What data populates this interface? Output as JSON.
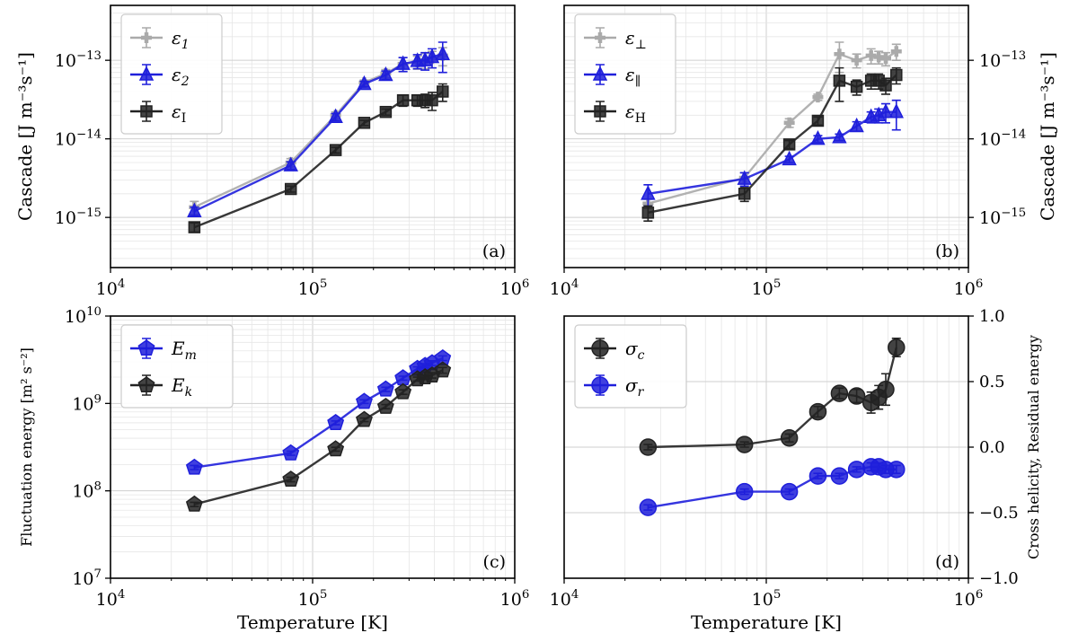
{
  "chart_data": [
    {
      "type": "line",
      "panel_label": "(a)",
      "xscale": "log",
      "yscale": "log",
      "xlim": [
        10000,
        1000000
      ],
      "ylim": [
        2.3e-16,
        5e-13
      ],
      "ylabel": "Cascade [J m⁻³s⁻¹]",
      "xlabel": "",
      "yaxis_side": "left",
      "legend_position": "top-left",
      "x_tick_labels": [
        "10",
        "10",
        "10"
      ],
      "x_tick_exponents": [
        "4",
        "5",
        "6"
      ],
      "y_tick_labels": [
        "10",
        "10",
        "10"
      ],
      "y_tick_exponents": [
        "−15",
        "−14",
        "−13"
      ],
      "x": [
        26000,
        78000,
        130000,
        180000,
        230000,
        280000,
        330000,
        360000,
        390000,
        440000
      ],
      "series": [
        {
          "name": "ε",
          "sub": "1",
          "color": "#aaaaaa",
          "marker": "plus",
          "values": [
            1.35e-15,
            5e-15,
            2e-14,
            5.2e-14,
            6.8e-14,
            9e-14,
            9.5e-14,
            1e-13,
            1.05e-13,
            1.15e-13
          ],
          "errors": [
            2.5e-16,
            6e-16,
            2e-15,
            4e-15,
            8e-15,
            1.8e-14,
            1.8e-14,
            2.2e-14,
            2.5e-14,
            3e-14
          ]
        },
        {
          "name": "ε",
          "sub": "2",
          "color": "#1f1fdb",
          "marker": "triangle",
          "values": [
            1.2e-15,
            4.6e-15,
            1.9e-14,
            5e-14,
            6.5e-14,
            9e-14,
            9.8e-14,
            1e-13,
            1.1e-13,
            1.2e-13
          ],
          "errors": [
            1.5e-16,
            5e-16,
            2e-15,
            4e-15,
            8e-15,
            1.8e-14,
            2e-14,
            2.5e-14,
            3e-14,
            5e-14
          ]
        },
        {
          "name": "ε",
          "sub": "I",
          "color": "#222222",
          "marker": "square",
          "values": [
            7.5e-16,
            2.3e-15,
            7.2e-15,
            1.6e-14,
            2.2e-14,
            3.1e-14,
            3.1e-14,
            3.1e-14,
            3.1e-14,
            4e-14
          ],
          "errors": [
            1e-16,
            2e-16,
            6e-16,
            1.2e-15,
            2e-15,
            5e-15,
            5e-15,
            6e-15,
            8e-15,
            1e-14
          ]
        }
      ]
    },
    {
      "type": "line",
      "panel_label": "(b)",
      "xscale": "log",
      "yscale": "log",
      "xlim": [
        10000,
        1000000
      ],
      "ylim": [
        2.3e-16,
        5e-13
      ],
      "ylabel": "Cascade [J m⁻³s⁻¹]",
      "xlabel": "",
      "yaxis_side": "right",
      "legend_position": "top-left",
      "x_tick_labels": [
        "10",
        "10",
        "10"
      ],
      "x_tick_exponents": [
        "4",
        "5",
        "6"
      ],
      "y_tick_labels": [
        "10",
        "10",
        "10"
      ],
      "y_tick_exponents": [
        "−15",
        "−14",
        "−13"
      ],
      "x": [
        26000,
        78000,
        130000,
        180000,
        230000,
        280000,
        330000,
        360000,
        390000,
        440000
      ],
      "series": [
        {
          "name": "ε",
          "sub": "⊥",
          "color": "#aaaaaa",
          "marker": "plus",
          "values": [
            1.5e-15,
            3.2e-15,
            1.6e-14,
            3.4e-14,
            1.2e-13,
            1e-13,
            1.15e-13,
            1.1e-13,
            1.05e-13,
            1.3e-13
          ],
          "errors": [
            2e-16,
            5e-16,
            2e-15,
            3e-15,
            5e-14,
            2e-14,
            2.5e-14,
            2e-14,
            2e-14,
            3e-14
          ]
        },
        {
          "name": "ε",
          "sub": "∥",
          "color": "#1f1fdb",
          "marker": "triangle",
          "values": [
            2e-15,
            3.1e-15,
            5.5e-15,
            1e-14,
            1.05e-14,
            1.45e-14,
            1.9e-14,
            2e-14,
            2.2e-14,
            2.2e-14
          ],
          "errors": [
            6e-16,
            6e-16,
            5e-16,
            1e-15,
            1e-15,
            2e-15,
            3e-15,
            4e-15,
            6e-15,
            9e-15
          ]
        },
        {
          "name": "ε",
          "sub": "H",
          "color": "#222222",
          "marker": "square",
          "values": [
            1.15e-15,
            2e-15,
            8.5e-15,
            1.7e-14,
            5.5e-14,
            4.6e-14,
            5.5e-14,
            5.5e-14,
            4.8e-14,
            6.5e-14
          ],
          "errors": [
            2.5e-16,
            4e-16,
            1e-15,
            2e-15,
            2.5e-14,
            1e-14,
            1.2e-14,
            1.2e-14,
            1.1e-14,
            1.5e-14
          ]
        }
      ]
    },
    {
      "type": "line",
      "panel_label": "(c)",
      "xscale": "log",
      "yscale": "log",
      "xlim": [
        10000,
        1000000
      ],
      "ylim": [
        10000000,
        10000000000
      ],
      "ylabel": "Fluctuation energy [m² s⁻²]",
      "xlabel": "Temperature [K]",
      "yaxis_side": "left",
      "legend_position": "top-left",
      "x_tick_labels": [
        "10",
        "10",
        "10"
      ],
      "x_tick_exponents": [
        "4",
        "5",
        "6"
      ],
      "y_tick_labels": [
        "10",
        "10",
        "10",
        "10"
      ],
      "y_tick_exponents": [
        "7",
        "8",
        "9",
        "10"
      ],
      "x": [
        26000,
        78000,
        130000,
        180000,
        230000,
        280000,
        330000,
        360000,
        390000,
        440000
      ],
      "series": [
        {
          "name": "E",
          "sub": "m",
          "color": "#1f1fdb",
          "marker": "pentagon",
          "values": [
            185000000.0,
            270000000.0,
            600000000.0,
            1050000000.0,
            1450000000.0,
            1950000000.0,
            2500000000.0,
            2700000000.0,
            2900000000.0,
            3300000000.0
          ],
          "errors": [
            10000000.0,
            15000000.0,
            30000000.0,
            50000000.0,
            80000000.0,
            100000000.0,
            120000000.0,
            150000000.0,
            180000000.0,
            200000000.0
          ]
        },
        {
          "name": "E",
          "sub": "k",
          "color": "#222222",
          "marker": "pentagon",
          "values": [
            70000000.0,
            135000000.0,
            300000000.0,
            650000000.0,
            920000000.0,
            1350000000.0,
            1900000000.0,
            2000000000.0,
            2100000000.0,
            2400000000.0
          ],
          "errors": [
            4000000.0,
            8000000.0,
            15000000.0,
            30000000.0,
            50000000.0,
            80000000.0,
            100000000.0,
            120000000.0,
            150000000.0,
            180000000.0
          ]
        }
      ]
    },
    {
      "type": "line",
      "panel_label": "(d)",
      "xscale": "log",
      "yscale": "linear",
      "xlim": [
        10000,
        1000000
      ],
      "ylim": [
        -1.0,
        1.0
      ],
      "ylabel": "Cross helicity, Residual energy",
      "xlabel": "Temperature [K]",
      "yaxis_side": "right",
      "legend_position": "top-left",
      "x_tick_labels": [
        "10",
        "10",
        "10"
      ],
      "x_tick_exponents": [
        "4",
        "5",
        "6"
      ],
      "y_ticks": [
        -1.0,
        -0.5,
        0.0,
        0.5,
        1.0
      ],
      "y_tick_labels": [
        "−1.0",
        "−0.5",
        "0.0",
        "0.5",
        "1.0"
      ],
      "x": [
        26000,
        78000,
        130000,
        180000,
        230000,
        280000,
        330000,
        360000,
        390000,
        440000
      ],
      "series": [
        {
          "name": "σ",
          "sub": "c",
          "color": "#222222",
          "marker": "circle",
          "values": [
            0.0,
            0.02,
            0.07,
            0.27,
            0.41,
            0.39,
            0.34,
            0.38,
            0.44,
            0.76
          ],
          "errors": [
            0.02,
            0.02,
            0.03,
            0.04,
            0.04,
            0.05,
            0.08,
            0.09,
            0.12,
            0.07
          ]
        },
        {
          "name": "σ",
          "sub": "r",
          "color": "#1f1fdb",
          "marker": "circle",
          "values": [
            -0.46,
            -0.34,
            -0.34,
            -0.22,
            -0.22,
            -0.17,
            -0.15,
            -0.15,
            -0.17,
            -0.17
          ],
          "errors": [
            0.02,
            0.02,
            0.02,
            0.02,
            0.02,
            0.02,
            0.03,
            0.03,
            0.03,
            0.03
          ]
        }
      ]
    }
  ]
}
